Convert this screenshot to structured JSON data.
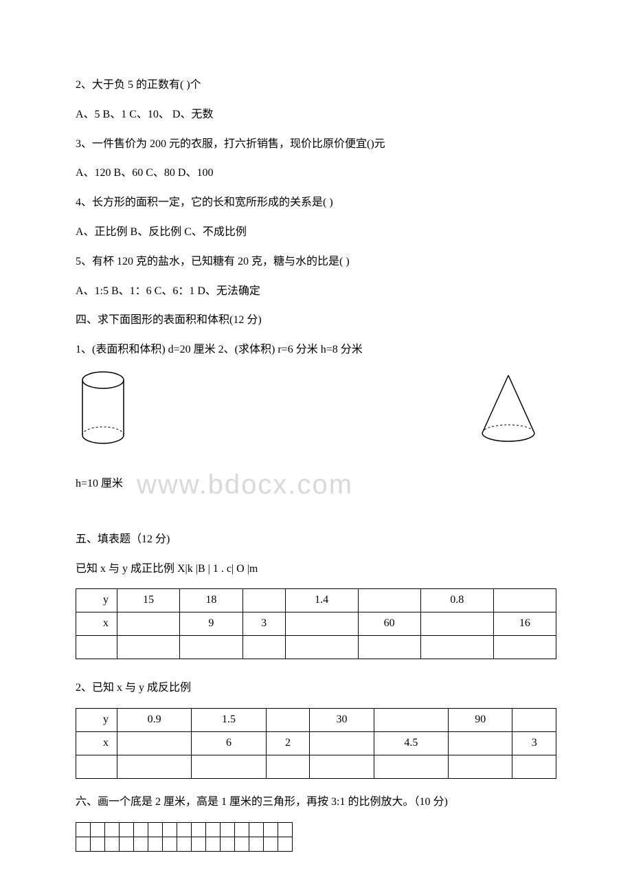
{
  "q2": {
    "text": "2、大于负 5 的正数有( )个",
    "opts": "A、5 B、1 C、10、 D、无数"
  },
  "q3": {
    "text": "3、一件售价为 200 元的衣服，打六折销售，现价比原价便宜()元",
    "opts": "A、120 B、60 C、80 D、100"
  },
  "q4": {
    "text": "4、长方形的面积一定，它的长和宽所形成的关系是( )",
    "opts": "A、正比例 B、反比例 C、不成比例"
  },
  "q5": {
    "text": "5、有杯 120 克的盐水，已知糖有 20 克，糖与水的比是( )",
    "opts": "A、1:5 B、1：6 C、6：1 D、无法确定"
  },
  "s4": {
    "title": "四、求下面图形的表面积和体积(12 分)",
    "line1": "1、(表面积和体积) d=20 厘米 2、(求体积) r=6 分米 h=8 分米",
    "hlabel": "h=10 厘米"
  },
  "watermark": "www.bdocx.com",
  "s5": {
    "title": "五、填表题（12 分)",
    "sub1": "已知 x 与 y 成正比例 X|k |B | 1 . c| O |m",
    "t1": {
      "y": [
        "y",
        "15",
        "18",
        "",
        "1.4",
        "",
        "0.8",
        ""
      ],
      "x": [
        "x",
        "",
        "9",
        "3",
        "",
        "60",
        "",
        "16"
      ]
    },
    "sub2": "2、已知 x 与 y 成反比例",
    "t2": {
      "y": [
        "y",
        "0.9",
        "1.5",
        "",
        "30",
        "",
        "90",
        ""
      ],
      "x": [
        "x",
        "",
        "6",
        "2",
        "",
        "4.5",
        "",
        "3"
      ]
    }
  },
  "s6": {
    "title": "六、画一个底是 2 厘米，高是 1 厘米的三角形，再按 3:1 的比例放大。（10 分)"
  },
  "grid": {
    "rows": 2,
    "cols": 15
  }
}
